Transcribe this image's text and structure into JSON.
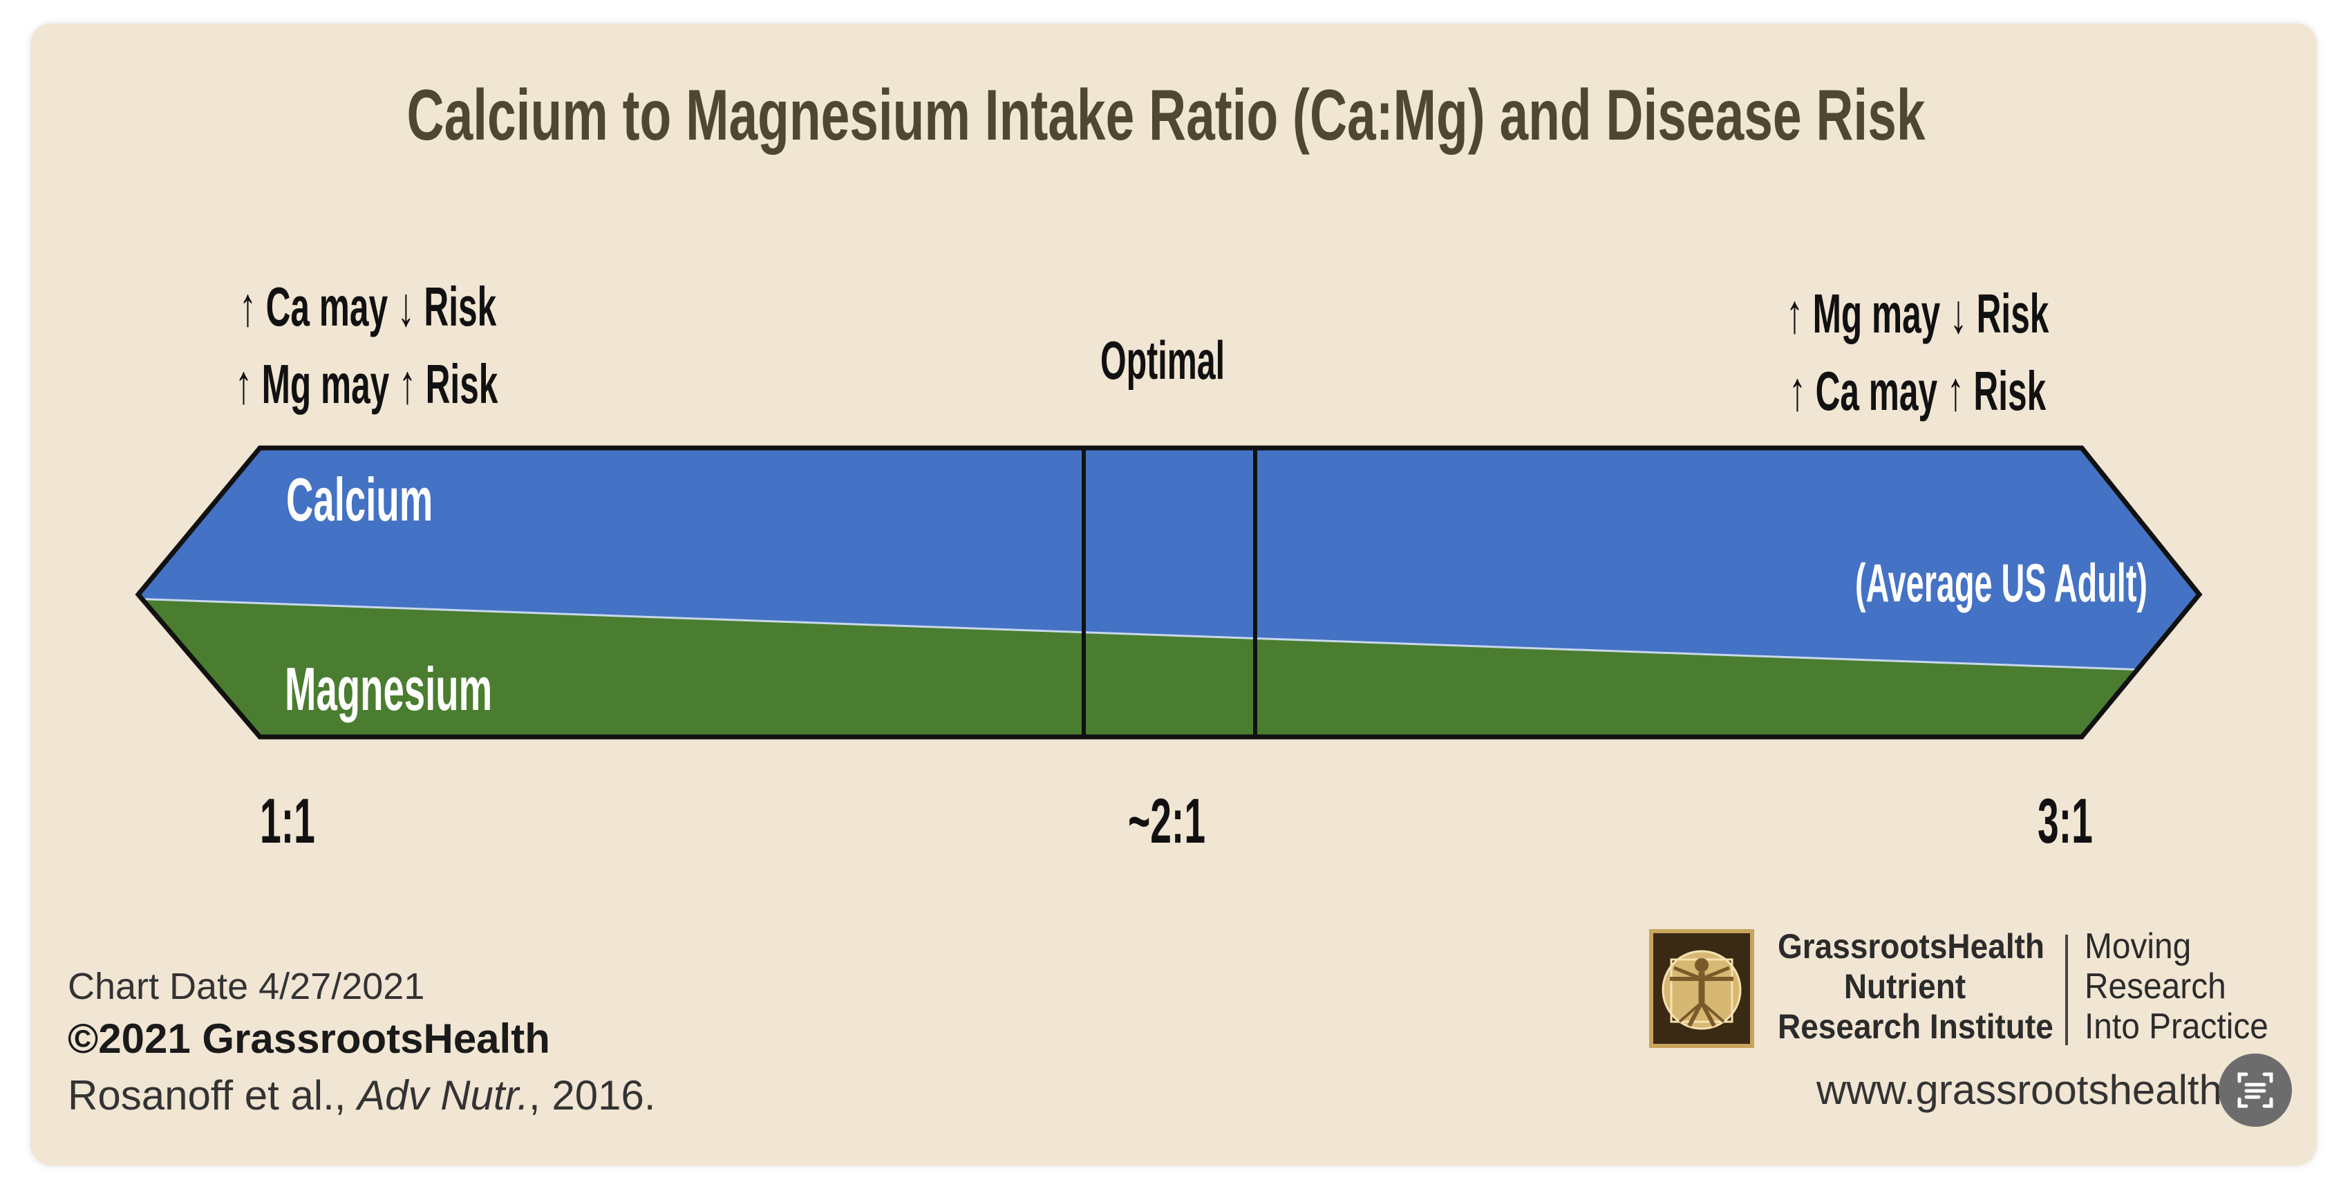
{
  "title": "Calcium to Magnesium Intake Ratio (Ca:Mg) and Disease Risk",
  "left_notes": [
    "↑ Ca may ↓ Risk",
    "↑ Mg may ↑ Risk"
  ],
  "right_notes": [
    "↑ Mg may ↓ Risk",
    "↑ Ca may ↑ Risk"
  ],
  "optimal_label": "Optimal",
  "bar": {
    "calcium_label": "Calcium",
    "magnesium_label": "Magnesium",
    "average_label": "(Average US Adult)",
    "calcium_color": "#4472c4",
    "magnesium_color": "#4a7d2f"
  },
  "ticks": [
    "1:1",
    "~2:1",
    "3:1"
  ],
  "footer": {
    "chart_date": "Chart Date 4/27/2021",
    "copyright": "©2021 GrassrootsHealth",
    "citation_authors": "Rosanoff et al., ",
    "citation_journal": "Adv Nutr.",
    "citation_year": ", 2016."
  },
  "logo": {
    "org_lines": [
      "GrassrootsHealth",
      "Nutrient",
      "Research Institute"
    ],
    "tagline_lines": [
      "Moving",
      "Research",
      "Into Practice"
    ],
    "website": "www.grassrootshealth."
  },
  "icons": {
    "logo": "vitruvian-man-icon",
    "scan": "scan-text-icon"
  }
}
